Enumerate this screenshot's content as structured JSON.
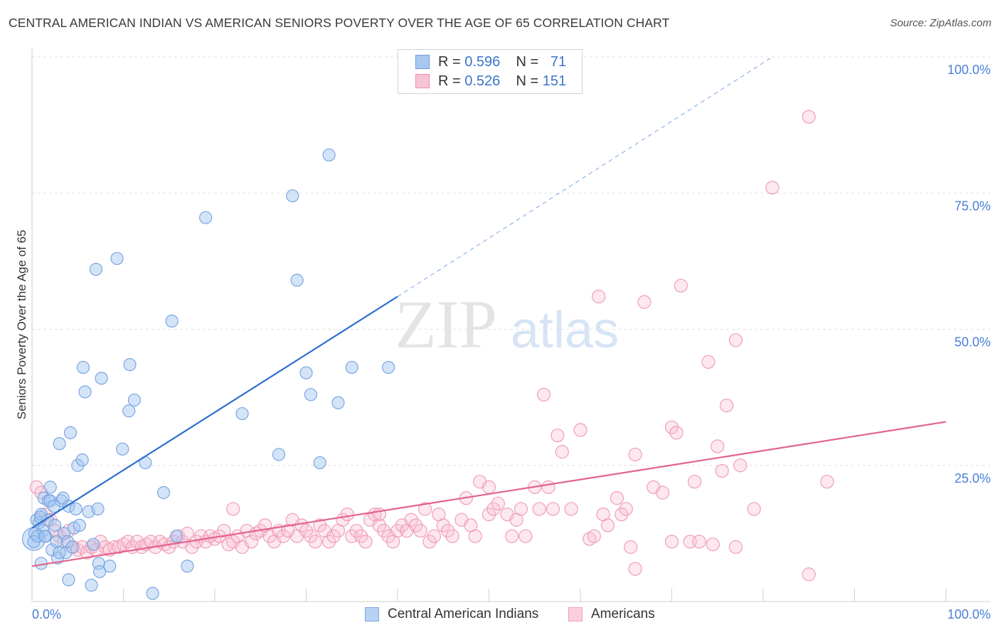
{
  "title": "CENTRAL AMERICAN INDIAN VS AMERICAN SENIORS POVERTY OVER THE AGE OF 65 CORRELATION CHART",
  "source": "Source: ZipAtlas.com",
  "legend": {
    "rows": [
      {
        "r_label": "R =",
        "r_value": "0.596",
        "n_label": "N =",
        "n_value": "71",
        "color": "#a9c8f0",
        "border": "#6f9ee0"
      },
      {
        "r_label": "R =",
        "r_value": "0.526",
        "n_label": "N =",
        "n_value": "151",
        "color": "#f8c3d3",
        "border": "#ec8fab"
      }
    ]
  },
  "bottom_legend": [
    {
      "label": "Central American Indians",
      "color": "#b8d2f3",
      "border": "#7aa6e2"
    },
    {
      "label": "Americans",
      "color": "#fbcfdc",
      "border": "#ee9fb7"
    }
  ],
  "watermark": {
    "zip": "ZIP",
    "atlas": "atlas"
  },
  "chart_data": {
    "type": "scatter",
    "title": "CENTRAL AMERICAN INDIAN VS AMERICAN SENIORS POVERTY OVER THE AGE OF 65 CORRELATION CHART",
    "xlabel": "",
    "ylabel": "Seniors Poverty Over the Age of 65",
    "xlim": [
      0,
      100
    ],
    "ylim": [
      0,
      100
    ],
    "x_tick_labels": [
      "0.0%",
      "100.0%"
    ],
    "y_tick_labels": [
      "100.0%",
      "75.0%",
      "50.0%",
      "25.0%"
    ],
    "y_ticks": [
      100,
      75,
      50,
      25
    ],
    "grid": true,
    "legend_position": "top-center",
    "series": [
      {
        "name": "Central American Indians",
        "color": "#7aa6e2",
        "fill": "rgba(160,195,240,0.45)",
        "trend": {
          "x0": 0,
          "y0": 13.5,
          "x1": 40,
          "y1": 56,
          "dashed_to_x": 81,
          "dashed_to_y": 100,
          "color": "#2f6fcf"
        },
        "points": [
          [
            0.3,
            12.5
          ],
          [
            0.5,
            15
          ],
          [
            0.8,
            14.5
          ],
          [
            1.0,
            16
          ],
          [
            1.2,
            13
          ],
          [
            1.3,
            19
          ],
          [
            1.5,
            12
          ],
          [
            1.7,
            15
          ],
          [
            1.8,
            18.5
          ],
          [
            2.0,
            18.5
          ],
          [
            2.2,
            9.5
          ],
          [
            2.5,
            14
          ],
          [
            2.7,
            11
          ],
          [
            2.8,
            8
          ],
          [
            3.0,
            29
          ],
          [
            3.2,
            18.5
          ],
          [
            3.4,
            19
          ],
          [
            3.5,
            12.5
          ],
          [
            3.7,
            9
          ],
          [
            3.9,
            11
          ],
          [
            4.0,
            17.5
          ],
          [
            4.2,
            31
          ],
          [
            4.4,
            10
          ],
          [
            4.6,
            13.5
          ],
          [
            4.8,
            17
          ],
          [
            5.0,
            25
          ],
          [
            5.2,
            14
          ],
          [
            5.5,
            26
          ],
          [
            5.6,
            43
          ],
          [
            5.8,
            38.5
          ],
          [
            6.2,
            16.5
          ],
          [
            6.7,
            10.5
          ],
          [
            7.0,
            61
          ],
          [
            7.2,
            17
          ],
          [
            7.3,
            7
          ],
          [
            7.4,
            5.5
          ],
          [
            7.6,
            41
          ],
          [
            8.5,
            6.5
          ],
          [
            9.3,
            63
          ],
          [
            9.9,
            28
          ],
          [
            10.6,
            35
          ],
          [
            10.7,
            43.5
          ],
          [
            11.2,
            37
          ],
          [
            12.4,
            25.5
          ],
          [
            13.2,
            1.5
          ],
          [
            14.4,
            20
          ],
          [
            15.3,
            51.5
          ],
          [
            15.8,
            12
          ],
          [
            17.0,
            6.5
          ],
          [
            19.0,
            70.5
          ],
          [
            23.0,
            34.5
          ],
          [
            27.0,
            27
          ],
          [
            28.5,
            74.5
          ],
          [
            29.0,
            59
          ],
          [
            30.0,
            42
          ],
          [
            30.5,
            38
          ],
          [
            31.5,
            25.5
          ],
          [
            32.5,
            82
          ],
          [
            33.5,
            36.5
          ],
          [
            35.0,
            43
          ],
          [
            39.0,
            43
          ],
          [
            0.2,
            11
          ],
          [
            1.0,
            7
          ],
          [
            2.0,
            21
          ],
          [
            4.0,
            4
          ],
          [
            6.5,
            3
          ],
          [
            0.6,
            12
          ],
          [
            1.4,
            12
          ],
          [
            3.0,
            9
          ],
          [
            2.4,
            17.5
          ],
          [
            0.9,
            15.5
          ]
        ],
        "big_point": [
          0.2,
          11.5
        ]
      },
      {
        "name": "Americans",
        "color": "#ee9fb7",
        "fill": "rgba(248,190,208,0.35)",
        "trend": {
          "x0": 0,
          "y0": 6.5,
          "x1": 100,
          "y1": 33,
          "color": "#e2638e"
        },
        "points": [
          [
            0.5,
            21
          ],
          [
            1.0,
            20
          ],
          [
            1.5,
            16
          ],
          [
            2.0,
            15
          ],
          [
            2.5,
            13
          ],
          [
            3.0,
            12
          ],
          [
            3.5,
            11
          ],
          [
            4.0,
            13
          ],
          [
            4.5,
            10
          ],
          [
            5.0,
            9.5
          ],
          [
            5.5,
            10
          ],
          [
            6.0,
            9
          ],
          [
            6.5,
            10
          ],
          [
            7.0,
            9.5
          ],
          [
            7.5,
            11
          ],
          [
            8.0,
            10
          ],
          [
            8.5,
            9.5
          ],
          [
            9.0,
            10
          ],
          [
            9.5,
            10
          ],
          [
            10.0,
            10.5
          ],
          [
            10.5,
            11
          ],
          [
            11.0,
            10
          ],
          [
            11.5,
            11
          ],
          [
            12.0,
            10
          ],
          [
            12.5,
            10.5
          ],
          [
            13.0,
            11
          ],
          [
            13.5,
            10
          ],
          [
            14.0,
            11
          ],
          [
            14.5,
            10.5
          ],
          [
            15.0,
            10
          ],
          [
            15.5,
            11
          ],
          [
            16.0,
            12
          ],
          [
            16.5,
            11
          ],
          [
            17.0,
            12.5
          ],
          [
            17.5,
            10
          ],
          [
            18.0,
            11
          ],
          [
            18.5,
            12
          ],
          [
            19.0,
            11
          ],
          [
            19.5,
            12
          ],
          [
            20.0,
            11.5
          ],
          [
            20.5,
            12
          ],
          [
            21.0,
            13
          ],
          [
            21.5,
            10.5
          ],
          [
            22.0,
            11
          ],
          [
            22.5,
            12
          ],
          [
            23.0,
            10
          ],
          [
            23.5,
            13
          ],
          [
            24.0,
            11
          ],
          [
            24.5,
            12.5
          ],
          [
            25.0,
            13
          ],
          [
            25.5,
            14
          ],
          [
            26.0,
            12
          ],
          [
            26.5,
            11
          ],
          [
            27.0,
            13
          ],
          [
            27.5,
            12
          ],
          [
            28.0,
            13
          ],
          [
            28.5,
            15
          ],
          [
            29.0,
            12
          ],
          [
            29.5,
            14
          ],
          [
            30.0,
            13
          ],
          [
            30.5,
            12
          ],
          [
            31.0,
            11
          ],
          [
            31.5,
            14
          ],
          [
            32.0,
            13
          ],
          [
            32.5,
            11
          ],
          [
            33.0,
            12
          ],
          [
            33.5,
            13
          ],
          [
            34.0,
            15
          ],
          [
            34.5,
            16
          ],
          [
            35.0,
            12
          ],
          [
            35.5,
            13
          ],
          [
            36.0,
            12
          ],
          [
            36.5,
            11
          ],
          [
            37.0,
            15
          ],
          [
            37.5,
            16
          ],
          [
            38.0,
            14
          ],
          [
            38.5,
            13
          ],
          [
            39.0,
            12
          ],
          [
            39.5,
            11
          ],
          [
            40.0,
            13
          ],
          [
            40.5,
            14
          ],
          [
            41.0,
            13
          ],
          [
            41.5,
            15
          ],
          [
            42.0,
            14
          ],
          [
            42.5,
            13
          ],
          [
            43.0,
            17
          ],
          [
            43.5,
            11
          ],
          [
            44.0,
            12
          ],
          [
            44.5,
            16
          ],
          [
            45.0,
            14
          ],
          [
            45.5,
            13
          ],
          [
            46.0,
            12
          ],
          [
            47.0,
            15
          ],
          [
            47.5,
            19
          ],
          [
            48.0,
            14
          ],
          [
            48.5,
            12
          ],
          [
            49.0,
            22
          ],
          [
            50.0,
            16
          ],
          [
            50.5,
            17
          ],
          [
            51.0,
            18
          ],
          [
            52.0,
            16
          ],
          [
            52.5,
            12
          ],
          [
            53.0,
            15
          ],
          [
            53.5,
            17
          ],
          [
            54.0,
            12
          ],
          [
            55.0,
            21
          ],
          [
            55.5,
            17
          ],
          [
            56.0,
            38
          ],
          [
            56.5,
            21
          ],
          [
            57.0,
            17
          ],
          [
            57.5,
            30.5
          ],
          [
            58.0,
            27.5
          ],
          [
            59.0,
            17
          ],
          [
            60.0,
            31.5
          ],
          [
            61.0,
            11.5
          ],
          [
            61.5,
            12
          ],
          [
            62.0,
            56
          ],
          [
            62.5,
            16
          ],
          [
            63.0,
            14
          ],
          [
            64.0,
            19
          ],
          [
            64.5,
            16
          ],
          [
            65.0,
            17
          ],
          [
            65.5,
            10
          ],
          [
            66.0,
            27
          ],
          [
            67.0,
            55
          ],
          [
            68.0,
            21
          ],
          [
            69.0,
            20
          ],
          [
            70.0,
            32
          ],
          [
            70.5,
            31
          ],
          [
            71.0,
            58
          ],
          [
            72.0,
            11
          ],
          [
            72.5,
            22
          ],
          [
            73.0,
            11
          ],
          [
            74.0,
            44
          ],
          [
            74.5,
            10.5
          ],
          [
            75.0,
            28.5
          ],
          [
            75.5,
            24
          ],
          [
            76.0,
            36
          ],
          [
            77.0,
            48
          ],
          [
            77.5,
            25
          ],
          [
            79.0,
            17
          ],
          [
            81.0,
            76
          ],
          [
            85.0,
            89
          ],
          [
            87.0,
            22
          ],
          [
            66.0,
            6
          ],
          [
            85.0,
            5
          ],
          [
            77.0,
            10
          ],
          [
            70.0,
            11
          ],
          [
            50.0,
            21
          ],
          [
            38.0,
            16
          ],
          [
            22.0,
            17
          ]
        ]
      }
    ]
  }
}
